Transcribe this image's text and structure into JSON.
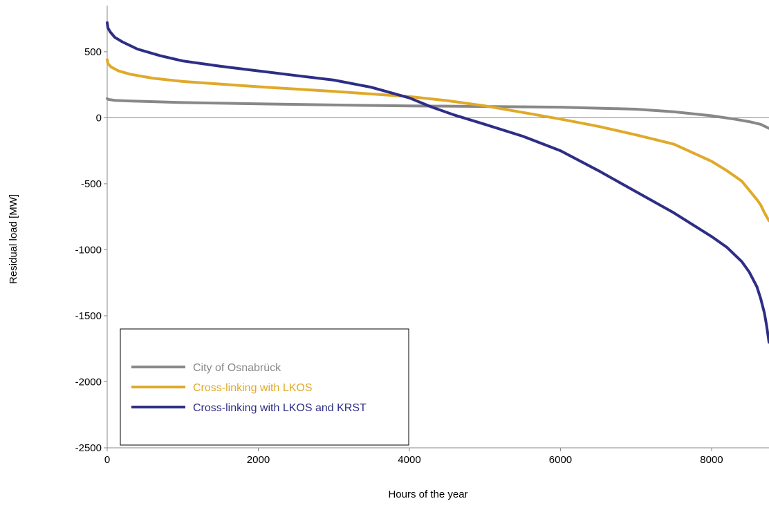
{
  "chart_data": {
    "type": "line",
    "title": "",
    "xlabel": "Hours of the year",
    "ylabel": "Residual load [MW]",
    "xlim": [
      0,
      8760
    ],
    "ylim": [
      -2500,
      850
    ],
    "xticks": [
      0,
      2000,
      4000,
      6000,
      8000
    ],
    "yticks": [
      500,
      0,
      -500,
      -1000,
      -1500,
      -2000,
      -2500
    ],
    "zero_line": true,
    "grid": false,
    "legend_position": "bottom-left",
    "series": [
      {
        "name": "City of Osnabrück",
        "color": "#888888",
        "x": [
          0,
          20,
          100,
          300,
          1000,
          2000,
          3000,
          4000,
          5000,
          6000,
          7000,
          7500,
          8000,
          8300,
          8500,
          8650,
          8760
        ],
        "y": [
          145,
          138,
          132,
          127,
          115,
          105,
          97,
          90,
          85,
          80,
          65,
          45,
          15,
          -10,
          -30,
          -50,
          -80
        ]
      },
      {
        "name": "Cross-linking with LKOS",
        "color": "#E0A92A",
        "x": [
          0,
          10,
          50,
          150,
          300,
          600,
          1000,
          2000,
          3000,
          4000,
          4500,
          5000,
          5500,
          6000,
          6500,
          7000,
          7500,
          8000,
          8200,
          8400,
          8500,
          8600,
          8650,
          8700,
          8760
        ],
        "y": [
          440,
          410,
          385,
          355,
          330,
          300,
          275,
          235,
          200,
          160,
          130,
          90,
          40,
          -10,
          -65,
          -130,
          -200,
          -330,
          -400,
          -480,
          -550,
          -620,
          -660,
          -720,
          -780
        ]
      },
      {
        "name": "Cross-linking with LKOS and KRST",
        "color": "#2E2E86",
        "x": [
          0,
          10,
          40,
          100,
          200,
          400,
          700,
          1000,
          1500,
          2000,
          2500,
          3000,
          3500,
          4000,
          4300,
          4600,
          5000,
          5500,
          6000,
          6500,
          7000,
          7500,
          8000,
          8200,
          8400,
          8500,
          8600,
          8650,
          8700,
          8730,
          8760
        ],
        "y": [
          720,
          680,
          650,
          610,
          575,
          520,
          470,
          430,
          390,
          355,
          320,
          285,
          230,
          150,
          80,
          20,
          -50,
          -140,
          -250,
          -400,
          -560,
          -720,
          -900,
          -980,
          -1090,
          -1170,
          -1280,
          -1370,
          -1480,
          -1580,
          -1700
        ]
      }
    ]
  }
}
